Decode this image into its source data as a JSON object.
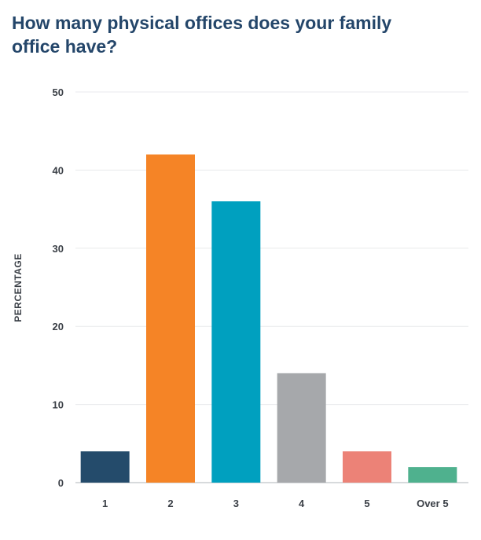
{
  "chart_data": {
    "type": "bar",
    "title": "How many physical offices does your family office have?",
    "ylabel": "PERCENTAGE",
    "xlabel": "",
    "categories": [
      "1",
      "2",
      "3",
      "4",
      "5",
      "Over 5"
    ],
    "values": [
      4,
      42,
      36,
      14,
      4,
      2
    ],
    "colors": [
      "#244b6b",
      "#f58426",
      "#00a0bf",
      "#a6a8ab",
      "#ec8277",
      "#4fb18e"
    ],
    "ylim": [
      0,
      50
    ],
    "yticks": [
      "0",
      "10",
      "20",
      "30",
      "40",
      "50"
    ],
    "grid": true,
    "legend": "none"
  }
}
